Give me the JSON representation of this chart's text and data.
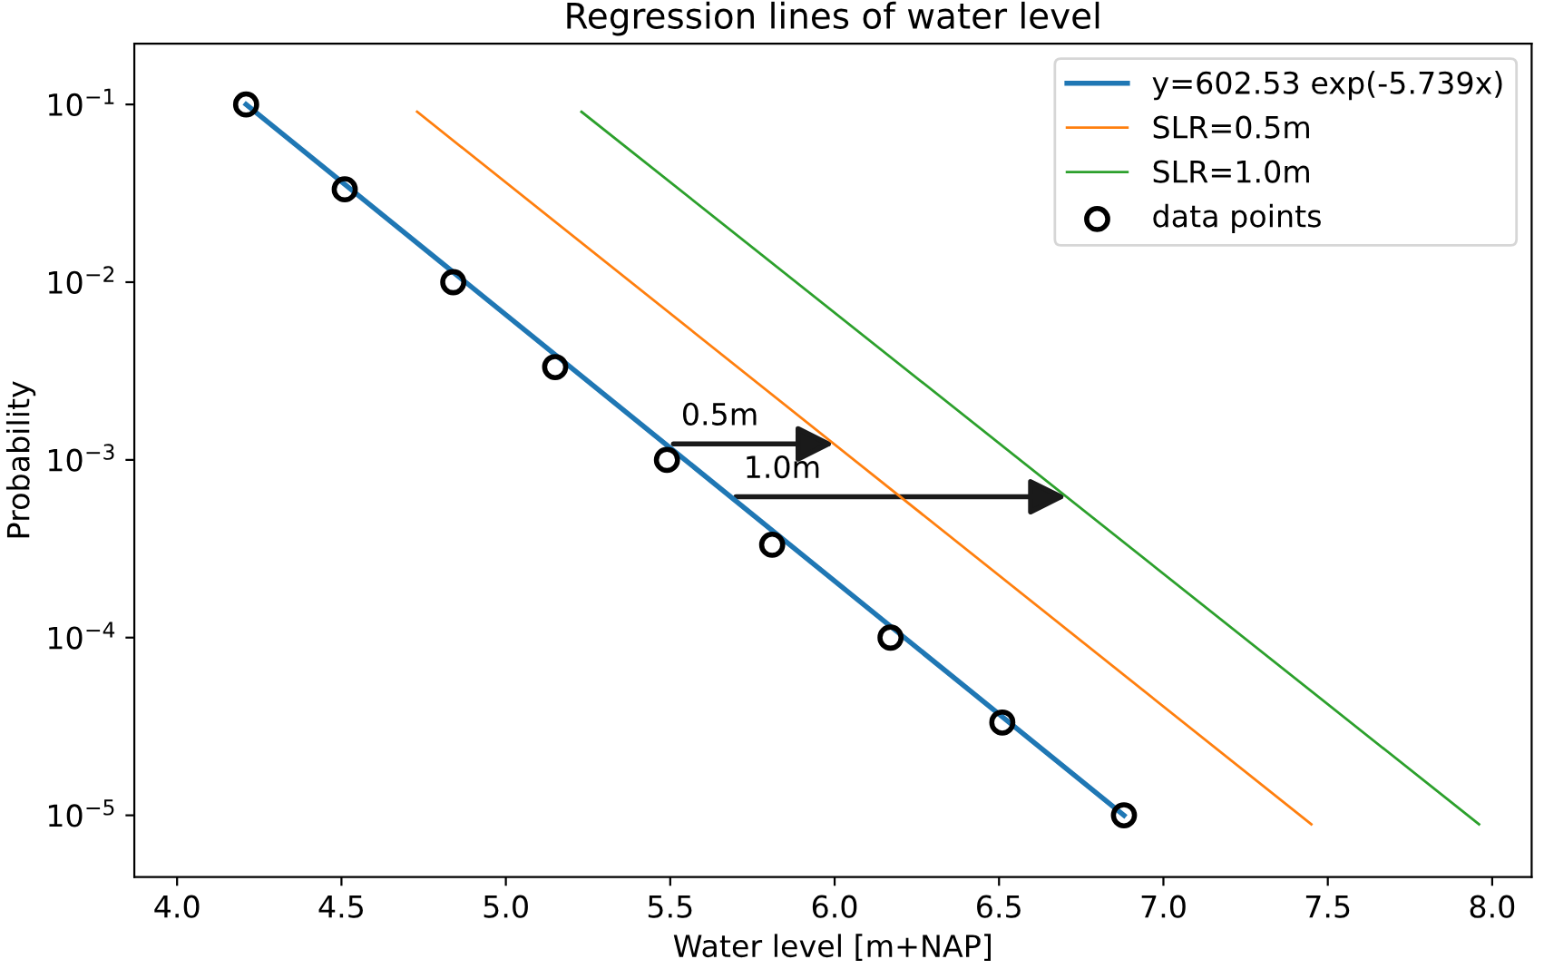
{
  "chart_data": {
    "type": "line",
    "title": "Regression lines of water level",
    "xlabel": "Water level [m+NAP]",
    "ylabel": "Probability",
    "log": "y",
    "xlim": [
      3.87,
      8.12
    ],
    "ylim": [
      4.5e-06,
      0.22
    ],
    "xticks": [
      {
        "value": 4.0,
        "label": "4.0"
      },
      {
        "value": 4.5,
        "label": "4.5"
      },
      {
        "value": 5.0,
        "label": "5.0"
      },
      {
        "value": 5.5,
        "label": "5.5"
      },
      {
        "value": 6.0,
        "label": "6.0"
      },
      {
        "value": 6.5,
        "label": "6.5"
      },
      {
        "value": 7.0,
        "label": "7.0"
      },
      {
        "value": 7.5,
        "label": "7.5"
      },
      {
        "value": 8.0,
        "label": "8.0"
      }
    ],
    "yticks": [
      {
        "value": 1e-05,
        "label": "10$^{−5}$"
      },
      {
        "value": 0.0001,
        "label": "10$^{−4}$"
      },
      {
        "value": 0.001,
        "label": "10$^{−3}$"
      },
      {
        "value": 0.01,
        "label": "10$^{−2}$"
      },
      {
        "value": 0.1,
        "label": "10$^{−1}$"
      }
    ],
    "legend": "top right",
    "grid": false,
    "series": [
      {
        "name": "y=602.53 exp(-5.739x)",
        "color": "#1f77b4",
        "x": [
          4.21,
          6.88
        ],
        "values": [
          0.1,
          1e-05
        ]
      },
      {
        "name": "SLR=0.5m",
        "color": "#ff7f0e",
        "x": [
          4.73,
          7.45
        ],
        "values": [
          0.091,
          8.9e-06
        ]
      },
      {
        "name": "SLR=1.0m",
        "color": "#2ca02c",
        "x": [
          5.23,
          7.96
        ],
        "values": [
          0.091,
          8.9e-06
        ]
      },
      {
        "name": "data points",
        "type": "scatter",
        "marker": "circle",
        "color": "#000000",
        "x": [
          4.21,
          4.51,
          4.84,
          5.15,
          5.49,
          5.81,
          6.17,
          6.51,
          6.88
        ],
        "values": [
          0.1,
          0.0333,
          0.01,
          0.00333,
          0.001,
          0.000333,
          0.0001,
          3.33e-05,
          1e-05
        ]
      }
    ],
    "annotations": [
      {
        "text": "0.5m",
        "x": 5.51,
        "y": 0.00123
      },
      {
        "text": "1.0m",
        "x": 5.7,
        "y": 0.00062
      }
    ]
  }
}
